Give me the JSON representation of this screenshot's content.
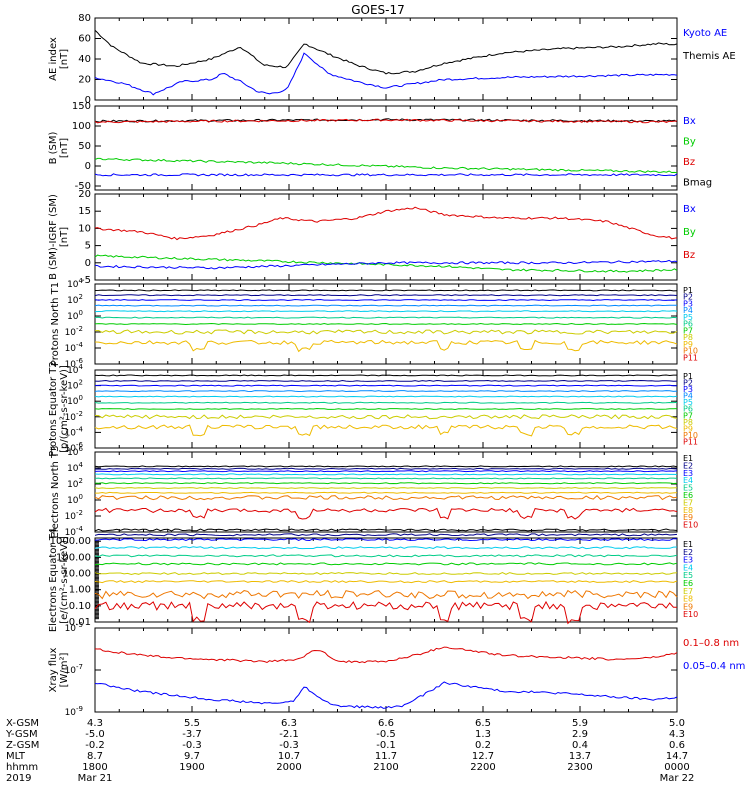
{
  "title": "GOES-17",
  "colors": {
    "black": "#000000",
    "blue": "#0000ff",
    "green": "#00cc00",
    "red": "#dd0000",
    "navy": "#0000aa",
    "cyan": "#00bbdd",
    "teal": "#00aa88",
    "yellow": "#cccc00",
    "orange": "#ee8800",
    "darkred": "#cc0000"
  },
  "chart_data": [
    {
      "type": "line",
      "id": "ae",
      "ylabel": "AE index [nT]",
      "yticks": [
        "80",
        "60",
        "40",
        "20",
        "0"
      ],
      "ylim": [
        0,
        80
      ],
      "legend": [
        {
          "name": "Kyoto AE",
          "color": "#0000ff"
        },
        {
          "name": "Themis AE",
          "color": "#000000"
        }
      ],
      "series": [
        {
          "name": "Themis AE",
          "color": "#000000",
          "x": [
            0,
            0.03,
            0.08,
            0.14,
            0.2,
            0.25,
            0.29,
            0.33,
            0.36,
            0.4,
            0.45,
            0.5,
            0.55,
            0.6,
            0.7,
            0.8,
            0.9,
            0.97,
            1
          ],
          "y": [
            68,
            52,
            36,
            33,
            40,
            52,
            34,
            32,
            55,
            45,
            34,
            26,
            28,
            36,
            46,
            50,
            52,
            55,
            54
          ]
        },
        {
          "name": "Kyoto AE",
          "color": "#0000ff",
          "x": [
            0,
            0.05,
            0.1,
            0.15,
            0.2,
            0.22,
            0.25,
            0.28,
            0.3,
            0.33,
            0.36,
            0.4,
            0.45,
            0.5,
            0.6,
            0.7,
            0.8,
            0.9,
            1
          ],
          "y": [
            22,
            16,
            6,
            18,
            20,
            26,
            18,
            8,
            6,
            10,
            46,
            26,
            18,
            12,
            20,
            22,
            23,
            24,
            25
          ]
        }
      ]
    },
    {
      "type": "line",
      "id": "bsm",
      "ylabel": "B (SM) [nT]",
      "yticks": [
        "150",
        "100",
        "50",
        "0",
        "-50"
      ],
      "ylim": [
        -60,
        150
      ],
      "legend": [
        {
          "name": "Bx",
          "color": "#0000ff"
        },
        {
          "name": "By",
          "color": "#00cc00"
        },
        {
          "name": "Bz",
          "color": "#dd0000"
        },
        {
          "name": "Bmag",
          "color": "#000000"
        }
      ],
      "series": [
        {
          "name": "Bmag",
          "color": "#000000",
          "x": [
            0,
            0.5,
            1
          ],
          "y": [
            112,
            116,
            112
          ]
        },
        {
          "name": "Bz",
          "color": "#dd0000",
          "x": [
            0,
            0.5,
            1
          ],
          "y": [
            110,
            115,
            110
          ]
        },
        {
          "name": "By",
          "color": "#00cc00",
          "x": [
            0,
            0.3,
            0.6,
            1
          ],
          "y": [
            18,
            8,
            -5,
            -15
          ]
        },
        {
          "name": "Bx",
          "color": "#0000ff",
          "x": [
            0,
            0.5,
            1
          ],
          "y": [
            -22,
            -22,
            -22
          ]
        }
      ]
    },
    {
      "type": "line",
      "id": "bigrf",
      "ylabel": "B (SM)-IGRF (SM) [nT]",
      "yticks": [
        "20",
        "15",
        "10",
        "5",
        "0",
        "-5"
      ],
      "ylim": [
        -5,
        20
      ],
      "legend": [
        {
          "name": "Bx",
          "color": "#0000ff"
        },
        {
          "name": "By",
          "color": "#00cc00"
        },
        {
          "name": "Bz",
          "color": "#dd0000"
        }
      ],
      "series": [
        {
          "name": "Bz",
          "color": "#dd0000",
          "x": [
            0,
            0.08,
            0.14,
            0.2,
            0.28,
            0.32,
            0.38,
            0.45,
            0.5,
            0.55,
            0.6,
            0.7,
            0.8,
            0.88,
            0.92,
            0.96,
            1
          ],
          "y": [
            10,
            9,
            7,
            8,
            11,
            13,
            12,
            13,
            15,
            16,
            14,
            13,
            13,
            12,
            10,
            8,
            7
          ]
        },
        {
          "name": "By",
          "color": "#00cc00",
          "x": [
            0,
            0.2,
            0.4,
            0.5,
            0.6,
            0.7,
            0.8,
            0.9,
            1
          ],
          "y": [
            2,
            1,
            0,
            -0.5,
            -1,
            -2,
            -2.2,
            -2.5,
            -2
          ]
        },
        {
          "name": "Bx",
          "color": "#0000ff",
          "x": [
            0,
            0.2,
            0.4,
            0.5,
            0.6,
            0.8,
            1
          ],
          "y": [
            -1,
            -1.5,
            -0.5,
            0,
            0,
            0,
            0.5
          ]
        }
      ]
    },
    {
      "type": "line",
      "id": "pn",
      "ylabel": "Protons North T1",
      "ylim_exp": [
        -6,
        4
      ],
      "legend": [
        {
          "name": "P1",
          "color": "#000000"
        },
        {
          "name": "P2",
          "color": "#000088"
        },
        {
          "name": "P3",
          "color": "#0000ff"
        },
        {
          "name": "P4",
          "color": "#0088ff"
        },
        {
          "name": "P5",
          "color": "#00ccee"
        },
        {
          "name": "P6",
          "color": "#00cc88"
        },
        {
          "name": "P7",
          "color": "#00cc00"
        },
        {
          "name": "P8",
          "color": "#cccc00"
        },
        {
          "name": "P9",
          "color": "#eebb00"
        },
        {
          "name": "P10",
          "color": "#ee7700"
        },
        {
          "name": "P11",
          "color": "#dd0000"
        }
      ],
      "levels": [
        3.2,
        2.6,
        2.0,
        1.3,
        0.6,
        -0.2,
        -1.0,
        -2.0,
        -3.3
      ]
    },
    {
      "type": "line",
      "id": "pe",
      "ylabel": "Protons Equator T2 [p/(cm²-s-sr-keV)]",
      "ylim_exp": [
        -6,
        4
      ],
      "legend": [
        {
          "name": "P1",
          "color": "#000000"
        },
        {
          "name": "P2",
          "color": "#000088"
        },
        {
          "name": "P3",
          "color": "#0000ff"
        },
        {
          "name": "P4",
          "color": "#0088ff"
        },
        {
          "name": "P5",
          "color": "#00ccee"
        },
        {
          "name": "P6",
          "color": "#00cc88"
        },
        {
          "name": "P7",
          "color": "#00cc00"
        },
        {
          "name": "P8",
          "color": "#cccc00"
        },
        {
          "name": "P9",
          "color": "#eebb00"
        },
        {
          "name": "P10",
          "color": "#ee7700"
        },
        {
          "name": "P11",
          "color": "#dd0000"
        }
      ],
      "levels": [
        3.3,
        2.6,
        2.0,
        1.3,
        0.6,
        -0.2,
        -1.0,
        -2.0,
        -3.3
      ]
    },
    {
      "type": "line",
      "id": "en",
      "ylabel": "Electrons North T3",
      "ylim_exp": [
        -4,
        6
      ],
      "legend": [
        {
          "name": "E1",
          "color": "#000000"
        },
        {
          "name": "E2",
          "color": "#000088"
        },
        {
          "name": "E3",
          "color": "#0000ff"
        },
        {
          "name": "E4",
          "color": "#00ccee"
        },
        {
          "name": "E5",
          "color": "#00cc88"
        },
        {
          "name": "E6",
          "color": "#00cc00"
        },
        {
          "name": "E7",
          "color": "#cccc00"
        },
        {
          "name": "E8",
          "color": "#eebb00"
        },
        {
          "name": "E9",
          "color": "#ee7700"
        },
        {
          "name": "E10",
          "color": "#dd0000"
        }
      ],
      "levels": [
        4.2,
        3.9,
        3.6,
        3.2,
        2.7,
        2.1,
        1.5,
        0.9,
        0.3,
        -1.3
      ]
    },
    {
      "type": "line",
      "id": "ee",
      "ylabel": "Electrons Equator T4 [e/(cm²-s-sr-keV)]",
      "yticks": [
        "1000.00",
        "100.00",
        "10.00",
        "1.00",
        "0.10",
        "0.01"
      ],
      "legend": [
        {
          "name": "E1",
          "color": "#000000"
        },
        {
          "name": "E2",
          "color": "#000088"
        },
        {
          "name": "E3",
          "color": "#0000ff"
        },
        {
          "name": "E4",
          "color": "#00ccee"
        },
        {
          "name": "E5",
          "color": "#00cc88"
        },
        {
          "name": "E6",
          "color": "#00cc00"
        },
        {
          "name": "E7",
          "color": "#cccc00"
        },
        {
          "name": "E8",
          "color": "#eebb00"
        },
        {
          "name": "E9",
          "color": "#ee7700"
        },
        {
          "name": "E10",
          "color": "#dd0000"
        }
      ],
      "levels": [
        3.7,
        3.4,
        3.1,
        2.6,
        2.1,
        1.6,
        1.0,
        0.5,
        -0.3,
        -1.0
      ]
    },
    {
      "type": "line",
      "id": "xray",
      "ylabel": "Xray flux [W/m²]",
      "ylim_exp": [
        -9,
        -5
      ],
      "legend": [
        {
          "name": "0.1–0.8 nm",
          "color": "#dd0000"
        },
        {
          "name": "0.05–0.4 nm",
          "color": "#0000ff"
        }
      ],
      "series": [
        {
          "name": "0.1–0.8 nm",
          "color": "#dd0000",
          "x": [
            0,
            0.05,
            0.12,
            0.2,
            0.3,
            0.35,
            0.38,
            0.42,
            0.5,
            0.55,
            0.6,
            0.7,
            0.8,
            0.9,
            0.96,
            1
          ],
          "y": [
            -6,
            -6.2,
            -6.4,
            -6.5,
            -6.6,
            -6.5,
            -6,
            -6.6,
            -6.6,
            -6.3,
            -5.9,
            -6.3,
            -6.4,
            -6.5,
            -6.4,
            -6.2
          ]
        },
        {
          "name": "0.05–0.4 nm",
          "color": "#0000ff",
          "x": [
            0,
            0.05,
            0.1,
            0.2,
            0.3,
            0.34,
            0.36,
            0.38,
            0.41,
            0.5,
            0.53,
            0.57,
            0.6,
            0.7,
            0.8,
            0.9,
            0.96,
            1
          ],
          "y": [
            -7.6,
            -7.9,
            -8.1,
            -8.4,
            -8.6,
            -8.5,
            -7.8,
            -8.2,
            -8.7,
            -8.8,
            -8.7,
            -8.1,
            -7.6,
            -8.0,
            -8.1,
            -8.3,
            -8.4,
            -8.3
          ]
        }
      ]
    }
  ],
  "xaxis": {
    "row_labels": [
      "X-GSM",
      "Y-GSM",
      "Z-GSM",
      "MLT",
      "hhmm",
      "2019"
    ],
    "ticks": [
      {
        "vals": [
          "4.3",
          "-5.0",
          "-0.2",
          "8.7",
          "1800",
          "Mar 21"
        ]
      },
      {
        "vals": [
          "5.5",
          "-3.7",
          "-0.3",
          "9.7",
          "1900",
          ""
        ]
      },
      {
        "vals": [
          "6.3",
          "-2.1",
          "-0.3",
          "10.7",
          "2000",
          ""
        ]
      },
      {
        "vals": [
          "6.6",
          "-0.5",
          "-0.1",
          "11.7",
          "2100",
          ""
        ]
      },
      {
        "vals": [
          "6.5",
          "1.3",
          "0.2",
          "12.7",
          "2200",
          ""
        ]
      },
      {
        "vals": [
          "5.9",
          "2.9",
          "0.4",
          "13.7",
          "2300",
          ""
        ]
      },
      {
        "vals": [
          "5.0",
          "4.3",
          "0.6",
          "14.7",
          "0000",
          "Mar 22"
        ]
      }
    ]
  }
}
